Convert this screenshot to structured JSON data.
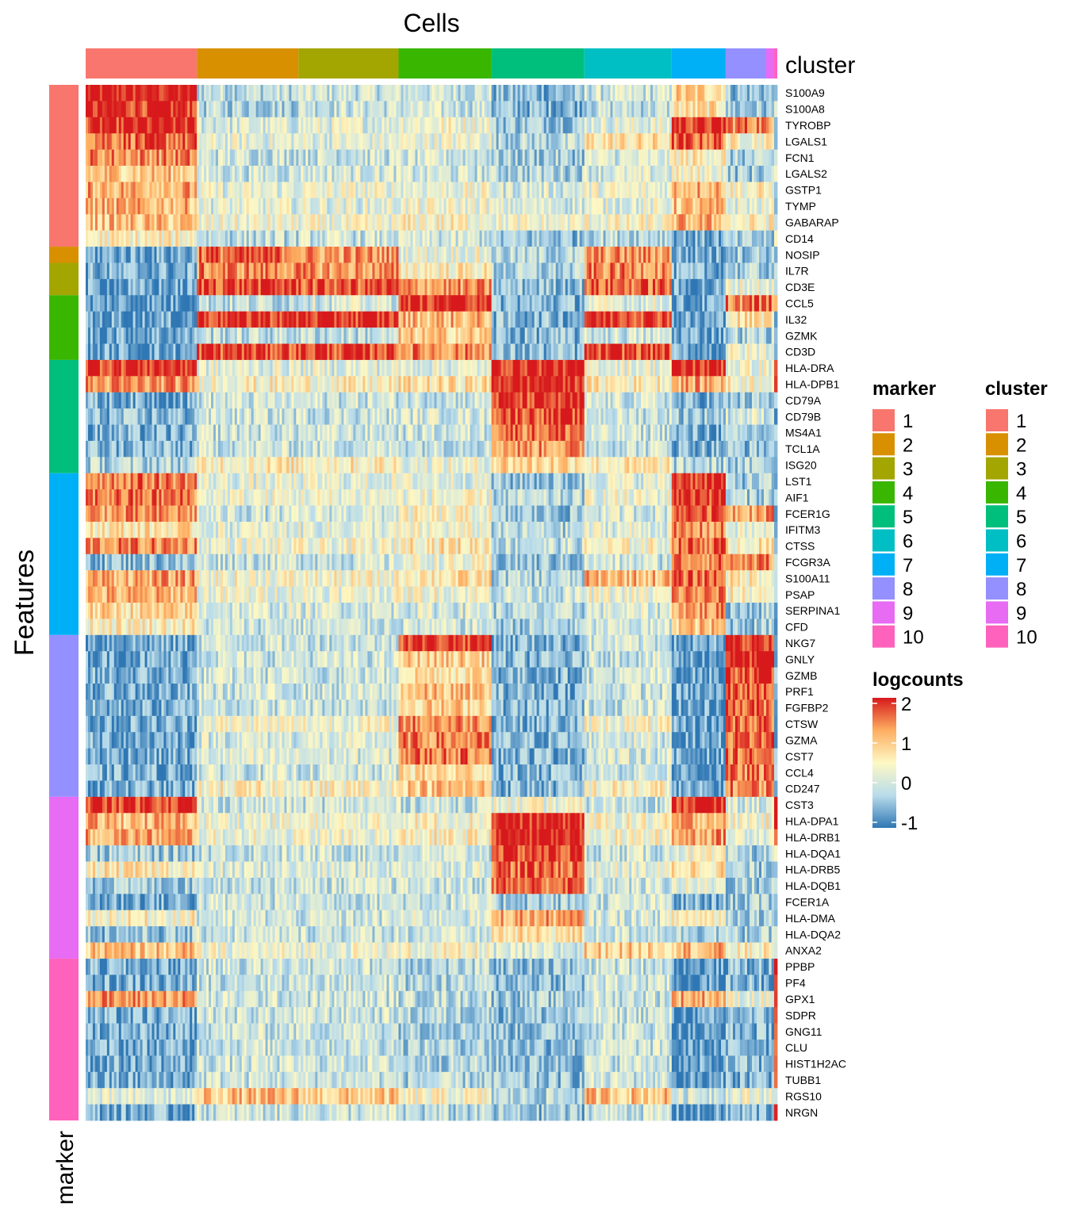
{
  "chart_data": {
    "type": "heatmap",
    "title": "Cells",
    "ylabel": "Features",
    "column_annotation_label": "cluster",
    "row_annotation_label": "marker",
    "value_label": "logcounts",
    "color_scale": {
      "min": -1,
      "max": 2,
      "ticks": [
        2,
        1,
        0,
        -1
      ],
      "colors": [
        "#2f77b4",
        "#b9dceb",
        "#fdf8c4",
        "#fdae61",
        "#d7191c"
      ]
    },
    "palette": [
      "#F8766D",
      "#D89000",
      "#A3A500",
      "#39B600",
      "#00BF7D",
      "#00BFC4",
      "#00B0F6",
      "#9590FF",
      "#E76BF3",
      "#FF62BC"
    ],
    "cluster_legend_title": "cluster",
    "marker_legend_title": "marker",
    "legend_entries": [
      "1",
      "2",
      "3",
      "4",
      "5",
      "6",
      "7",
      "8",
      "9",
      "10"
    ],
    "clusters": [
      {
        "id": "1",
        "cells": 140
      },
      {
        "id": "2",
        "cells": 128
      },
      {
        "id": "3",
        "cells": 126
      },
      {
        "id": "4",
        "cells": 117
      },
      {
        "id": "5",
        "cells": 117
      },
      {
        "id": "6",
        "cells": 110
      },
      {
        "id": "7",
        "cells": 68
      },
      {
        "id": "8",
        "cells": 51
      },
      {
        "id": "9",
        "cells": 10
      },
      {
        "id": "10",
        "cells": 4
      }
    ],
    "features": [
      {
        "name": "S100A9",
        "marker": "1",
        "means": [
          2,
          -0.1,
          0,
          0,
          -0.5,
          0,
          0.9,
          -0.4,
          -0.5,
          0
        ]
      },
      {
        "name": "S100A8",
        "marker": "1",
        "means": [
          1.9,
          -0.2,
          0,
          0,
          -0.5,
          -0.1,
          0.7,
          -0.4,
          -0.5,
          0
        ]
      },
      {
        "name": "TYROBP",
        "marker": "1",
        "means": [
          1.9,
          0.1,
          0.2,
          0.4,
          -0.3,
          0.2,
          1.9,
          1.5,
          1,
          0
        ]
      },
      {
        "name": "LGALS1",
        "marker": "1",
        "means": [
          1.6,
          0.2,
          0.2,
          0.3,
          -0.2,
          0.7,
          1.6,
          0.5,
          0.5,
          0
        ]
      },
      {
        "name": "FCN1",
        "marker": "1",
        "means": [
          1.4,
          0,
          0,
          0,
          -0.3,
          0.1,
          0.6,
          -0.3,
          -0.3,
          0
        ]
      },
      {
        "name": "LGALS2",
        "marker": "1",
        "means": [
          1,
          0,
          0.1,
          0,
          -0.2,
          0.1,
          0.4,
          -0.3,
          -0.3,
          0
        ]
      },
      {
        "name": "GSTP1",
        "marker": "1",
        "means": [
          1.2,
          0.2,
          0.3,
          0.3,
          0.1,
          0.3,
          1.2,
          0.5,
          0.5,
          0
        ]
      },
      {
        "name": "TYMP",
        "marker": "1",
        "means": [
          1.1,
          0.2,
          0.2,
          0.3,
          0.1,
          0.2,
          1,
          0.2,
          0.2,
          0
        ]
      },
      {
        "name": "GABARAP",
        "marker": "1",
        "means": [
          1,
          0.3,
          0.3,
          0.5,
          0.3,
          0.4,
          1.1,
          0.5,
          0.5,
          0
        ]
      },
      {
        "name": "CD14",
        "marker": "1",
        "means": [
          0.5,
          -0.1,
          0,
          0,
          -0.4,
          -0.1,
          -0.6,
          -0.4,
          -0.4,
          0
        ]
      },
      {
        "name": "NOSIP",
        "marker": "2",
        "means": [
          -0.6,
          1.6,
          1.3,
          0.3,
          -0.2,
          1.3,
          -0.6,
          -0.3,
          -0.3,
          -0.5
        ]
      },
      {
        "name": "IL7R",
        "marker": "3",
        "means": [
          -0.6,
          1.4,
          1.3,
          0.6,
          -0.3,
          1.4,
          -0.6,
          -0.3,
          -0.3,
          -0.5
        ]
      },
      {
        "name": "CD3E",
        "marker": "3",
        "means": [
          -0.7,
          1.8,
          1.7,
          1.3,
          -0.4,
          1.6,
          -0.7,
          0.3,
          0.3,
          -0.5
        ]
      },
      {
        "name": "CCL5",
        "marker": "4",
        "means": [
          -0.7,
          -0.1,
          0.1,
          2,
          -0.5,
          0.2,
          -0.7,
          1.5,
          1.5,
          1.5
        ]
      },
      {
        "name": "IL32",
        "marker": "4",
        "means": [
          -0.7,
          1.9,
          1.9,
          1.1,
          -0.5,
          1.9,
          -0.7,
          0.7,
          0.7,
          -0.5
        ]
      },
      {
        "name": "GZMK",
        "marker": "4",
        "means": [
          -0.6,
          -0.1,
          -0.1,
          0.9,
          -0.5,
          0,
          -0.6,
          -0.2,
          -0.2,
          -0.5
        ]
      },
      {
        "name": "CD3D",
        "marker": "4",
        "means": [
          -0.7,
          1.8,
          1.8,
          1.4,
          -0.5,
          1.8,
          -0.7,
          0.3,
          0.3,
          -0.5
        ]
      },
      {
        "name": "HLA-DRA",
        "marker": "5",
        "means": [
          1.9,
          0.2,
          0.2,
          0.2,
          2,
          0.3,
          1.9,
          0.3,
          0.3,
          2
        ]
      },
      {
        "name": "HLA-DPB1",
        "marker": "5",
        "means": [
          1.3,
          0.5,
          0.5,
          0.7,
          2,
          0.6,
          1.2,
          0.5,
          0.5,
          2
        ]
      },
      {
        "name": "CD79A",
        "marker": "5",
        "means": [
          -0.6,
          0,
          0,
          0,
          1.8,
          0,
          -0.6,
          -0.4,
          -0.4,
          -0.5
        ]
      },
      {
        "name": "CD79B",
        "marker": "5",
        "means": [
          -0.5,
          0,
          0,
          0.1,
          1.8,
          0,
          -0.3,
          0.1,
          0.1,
          -0.5
        ]
      },
      {
        "name": "MS4A1",
        "marker": "5",
        "means": [
          -0.6,
          0,
          0,
          0,
          1.6,
          0,
          -0.6,
          -0.4,
          -0.4,
          -0.5
        ]
      },
      {
        "name": "TCL1A",
        "marker": "5",
        "means": [
          -0.5,
          0,
          0,
          0,
          1.3,
          0,
          -0.5,
          -0.4,
          -0.4,
          -0.5
        ]
      },
      {
        "name": "ISG20",
        "marker": "5",
        "means": [
          -0.2,
          0.6,
          0.6,
          0.3,
          0.9,
          0.6,
          -0.2,
          -0.3,
          -0.3,
          -0.5
        ]
      },
      {
        "name": "LST1",
        "marker": "7",
        "means": [
          1.5,
          0.2,
          0.2,
          0.2,
          -0.4,
          0.2,
          1.9,
          -0.3,
          -0.3,
          -0.5
        ]
      },
      {
        "name": "AIF1",
        "marker": "7",
        "means": [
          1.5,
          0.3,
          0.3,
          0.3,
          -0.2,
          0.3,
          1.9,
          -0.2,
          -0.2,
          -0.5
        ]
      },
      {
        "name": "FCER1G",
        "marker": "7",
        "means": [
          1.3,
          0,
          0.1,
          0.4,
          -0.4,
          0.1,
          1.8,
          1.3,
          1.3,
          -0.5
        ]
      },
      {
        "name": "IFITM3",
        "marker": "7",
        "means": [
          0.7,
          0.2,
          0.2,
          0.3,
          -0.2,
          0.2,
          1.3,
          0.2,
          0.2,
          -0.5
        ]
      },
      {
        "name": "CTSS",
        "marker": "7",
        "means": [
          1.4,
          0.3,
          0.3,
          0.7,
          -0.1,
          0.4,
          1.6,
          0.6,
          0.6,
          -0.5
        ]
      },
      {
        "name": "FCGR3A",
        "marker": "7",
        "means": [
          -0.4,
          0,
          0,
          0.3,
          -0.4,
          0,
          1.5,
          1.4,
          1.4,
          -0.5
        ]
      },
      {
        "name": "S100A11",
        "marker": "7",
        "means": [
          1.2,
          0.4,
          0.4,
          0.7,
          -0.2,
          1.1,
          1.6,
          0.6,
          0.6,
          0
        ]
      },
      {
        "name": "PSAP",
        "marker": "7",
        "means": [
          1.1,
          0.3,
          0.3,
          0.4,
          0,
          0.3,
          1.4,
          0.5,
          0.5,
          0
        ]
      },
      {
        "name": "SERPINA1",
        "marker": "7",
        "means": [
          0.8,
          0.1,
          0.1,
          0.1,
          -0.2,
          0.1,
          1.3,
          -0.3,
          -0.3,
          -0.5
        ]
      },
      {
        "name": "CFD",
        "marker": "7",
        "means": [
          0.6,
          0,
          0,
          0,
          -0.3,
          0,
          1,
          -0.3,
          -0.3,
          -0.5
        ]
      },
      {
        "name": "NKG7",
        "marker": "8",
        "means": [
          -0.6,
          0,
          0,
          1.9,
          -0.5,
          0,
          -0.7,
          2,
          2,
          -0.5
        ]
      },
      {
        "name": "GNLY",
        "marker": "8",
        "means": [
          -0.6,
          0,
          0,
          0.9,
          -0.5,
          0,
          -0.7,
          2,
          2,
          -0.5
        ]
      },
      {
        "name": "GZMB",
        "marker": "8",
        "means": [
          -0.6,
          0,
          0,
          0.8,
          -0.5,
          0,
          -0.7,
          1.8,
          1.8,
          -0.5
        ]
      },
      {
        "name": "PRF1",
        "marker": "8",
        "means": [
          -0.6,
          0,
          0,
          1,
          -0.5,
          0,
          -0.7,
          1.7,
          1.7,
          -0.5
        ]
      },
      {
        "name": "FGFBP2",
        "marker": "8",
        "means": [
          -0.6,
          0,
          0,
          0.9,
          -0.5,
          0,
          -0.7,
          1.6,
          1.6,
          -0.5
        ]
      },
      {
        "name": "CTSW",
        "marker": "8",
        "means": [
          -0.6,
          0.4,
          0.4,
          1.4,
          -0.5,
          0.4,
          -0.7,
          1.6,
          1.6,
          -0.5
        ]
      },
      {
        "name": "GZMA",
        "marker": "8",
        "means": [
          -0.6,
          0.1,
          0.1,
          1.4,
          -0.5,
          0.1,
          -0.7,
          1.6,
          1.6,
          -0.5
        ]
      },
      {
        "name": "CST7",
        "marker": "8",
        "means": [
          -0.6,
          0.1,
          0.1,
          1.5,
          -0.5,
          0.1,
          -0.7,
          1.6,
          1.6,
          -0.5
        ]
      },
      {
        "name": "CCL4",
        "marker": "8",
        "means": [
          -0.6,
          0,
          0,
          0.8,
          -0.5,
          0,
          -0.7,
          1.4,
          1.4,
          -0.5
        ]
      },
      {
        "name": "CD247",
        "marker": "8",
        "means": [
          -0.6,
          0.5,
          0.5,
          1,
          -0.5,
          0.5,
          -0.7,
          1.4,
          1.4,
          -0.5
        ]
      },
      {
        "name": "CST3",
        "marker": "9",
        "means": [
          1.9,
          0,
          0,
          0,
          0.3,
          0,
          1.9,
          0.1,
          0.1,
          2
        ]
      },
      {
        "name": "HLA-DPA1",
        "marker": "9",
        "means": [
          1.1,
          0.3,
          0.3,
          0.5,
          2,
          0.4,
          1.2,
          0.4,
          0.4,
          2
        ]
      },
      {
        "name": "HLA-DRB1",
        "marker": "9",
        "means": [
          1.2,
          0.3,
          0.3,
          0.5,
          2,
          0.4,
          1.3,
          0.3,
          0.3,
          2
        ]
      },
      {
        "name": "HLA-DQA1",
        "marker": "9",
        "means": [
          -0.3,
          0,
          0,
          0,
          1.8,
          0,
          0.3,
          -0.3,
          -0.3,
          0
        ]
      },
      {
        "name": "HLA-DRB5",
        "marker": "9",
        "means": [
          0.6,
          0.1,
          0.1,
          0.2,
          1.6,
          0.2,
          0.8,
          -0.3,
          -0.3,
          0
        ]
      },
      {
        "name": "HLA-DQB1",
        "marker": "9",
        "means": [
          -0.3,
          0,
          0,
          0,
          1.6,
          0,
          0.2,
          -0.3,
          -0.3,
          0
        ]
      },
      {
        "name": "FCER1A",
        "marker": "9",
        "means": [
          -0.6,
          0,
          0,
          0,
          -0.3,
          0,
          -0.6,
          -0.3,
          -0.3,
          0
        ]
      },
      {
        "name": "HLA-DMA",
        "marker": "9",
        "means": [
          0.5,
          0,
          0,
          0.1,
          1.2,
          0.1,
          0.6,
          -0.2,
          -0.2,
          0
        ]
      },
      {
        "name": "HLA-DQA2",
        "marker": "9",
        "means": [
          -0.4,
          0,
          0,
          0,
          0.7,
          0,
          -0.2,
          -0.3,
          -0.3,
          0
        ]
      },
      {
        "name": "ANXA2",
        "marker": "9",
        "means": [
          1,
          0.3,
          0.3,
          0.4,
          0,
          0.9,
          1.1,
          0.5,
          0.5,
          0.5
        ]
      },
      {
        "name": "PPBP",
        "marker": "10",
        "means": [
          -0.6,
          0,
          0,
          -0.2,
          -0.4,
          0,
          -0.8,
          -0.5,
          -0.5,
          2
        ]
      },
      {
        "name": "PF4",
        "marker": "10",
        "means": [
          -0.6,
          0,
          0,
          -0.2,
          -0.4,
          0,
          -0.8,
          -0.5,
          -0.5,
          2
        ]
      },
      {
        "name": "GPX1",
        "marker": "10",
        "means": [
          1.3,
          0,
          0,
          -0.1,
          -0.3,
          0,
          1.2,
          0.3,
          0.3,
          2
        ]
      },
      {
        "name": "SDPR",
        "marker": "10",
        "means": [
          -0.6,
          0,
          0,
          -0.2,
          -0.4,
          0,
          -0.8,
          -0.5,
          -0.5,
          2
        ]
      },
      {
        "name": "GNG11",
        "marker": "10",
        "means": [
          -0.6,
          0,
          0,
          -0.2,
          -0.4,
          0,
          -0.8,
          -0.5,
          -0.5,
          2
        ]
      },
      {
        "name": "CLU",
        "marker": "10",
        "means": [
          -0.6,
          0,
          0,
          -0.2,
          -0.4,
          0,
          -0.8,
          -0.5,
          -0.5,
          2
        ]
      },
      {
        "name": "HIST1H2AC",
        "marker": "10",
        "means": [
          -0.6,
          0,
          0,
          -0.2,
          -0.4,
          0,
          -0.8,
          -0.5,
          -0.5,
          2
        ]
      },
      {
        "name": "TUBB1",
        "marker": "10",
        "means": [
          -0.6,
          0,
          0,
          -0.2,
          -0.4,
          0,
          -0.8,
          -0.5,
          -0.5,
          2
        ]
      },
      {
        "name": "RGS10",
        "marker": "10",
        "means": [
          0.1,
          1,
          0.9,
          0.4,
          -0.2,
          1,
          0.1,
          0.3,
          0.3,
          0.5
        ]
      },
      {
        "name": "NRGN",
        "marker": "10",
        "means": [
          -0.6,
          0,
          0,
          -0.2,
          -0.4,
          0,
          -0.8,
          -0.5,
          -0.5,
          2
        ]
      }
    ]
  }
}
